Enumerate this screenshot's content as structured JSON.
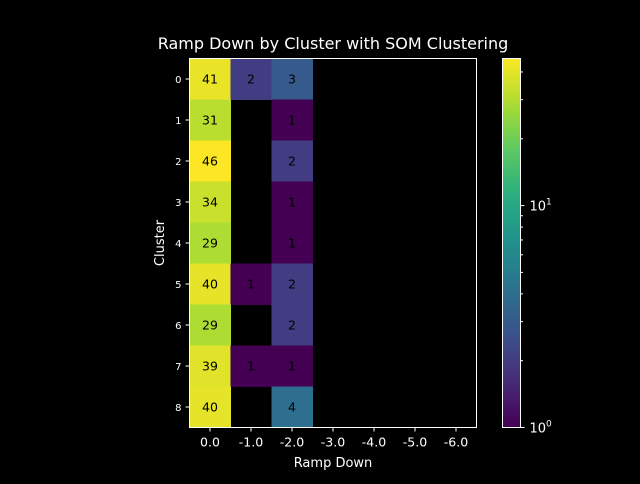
{
  "chart_data": {
    "type": "heatmap",
    "title": "Ramp Down by Cluster with SOM Clustering",
    "xlabel": "Ramp Down",
    "ylabel": "Cluster",
    "x_categories": [
      "0.0",
      "-1.0",
      "-2.0",
      "-3.0",
      "-4.0",
      "-5.0",
      "-6.0"
    ],
    "y_categories": [
      "0",
      "1",
      "2",
      "3",
      "4",
      "5",
      "6",
      "7",
      "8"
    ],
    "values": [
      [
        41,
        2,
        3,
        null,
        null,
        null,
        null
      ],
      [
        31,
        null,
        1,
        null,
        null,
        null,
        null
      ],
      [
        46,
        null,
        2,
        null,
        null,
        null,
        null
      ],
      [
        34,
        null,
        1,
        null,
        null,
        null,
        null
      ],
      [
        29,
        null,
        1,
        null,
        null,
        null,
        null
      ],
      [
        40,
        1,
        2,
        null,
        null,
        null,
        null
      ],
      [
        29,
        null,
        2,
        null,
        null,
        null,
        null
      ],
      [
        39,
        1,
        1,
        null,
        null,
        null,
        null
      ],
      [
        40,
        null,
        4,
        null,
        null,
        null,
        null
      ]
    ],
    "colorbar": {
      "scale": "log",
      "min": 1,
      "max": 46,
      "ticks": [
        {
          "value": 1,
          "base": "10",
          "exponent": "0"
        },
        {
          "value": 10,
          "base": "10",
          "exponent": "1"
        }
      ],
      "colormap": "viridis"
    },
    "grid": false,
    "background_color": "#000000",
    "text_color": "#ffffff"
  }
}
